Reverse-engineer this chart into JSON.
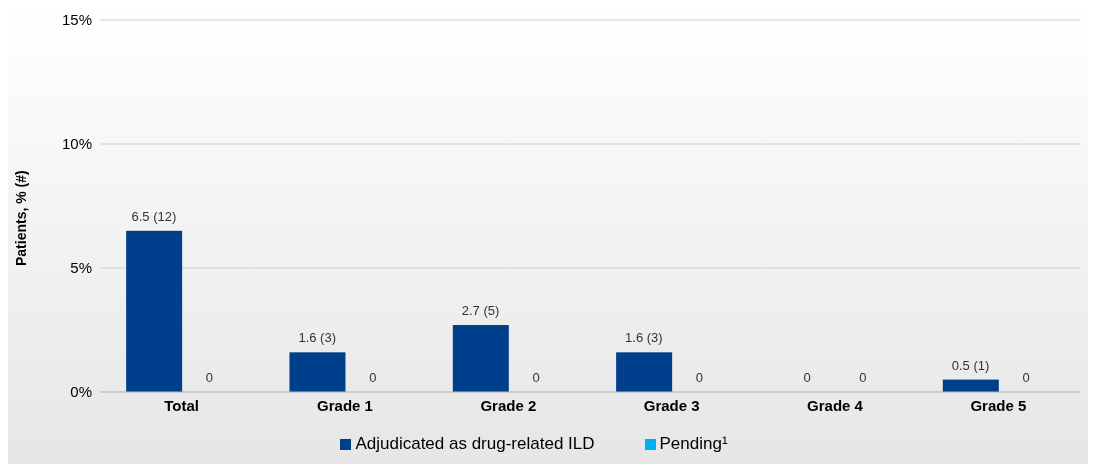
{
  "chart_data": {
    "type": "bar",
    "ylabel": "Patients, % (#)",
    "categories": [
      "Total",
      "Grade 1",
      "Grade 2",
      "Grade 3",
      "Grade 4",
      "Grade 5"
    ],
    "series": [
      {
        "name": "Adjudicated as drug-related ILD",
        "color": "#003f8c",
        "values": [
          6.5,
          1.6,
          2.7,
          1.6,
          0,
          0.5
        ],
        "value_labels": [
          "6.5 (12)",
          "1.6 (3)",
          "2.7 (5)",
          "1.6 (3)",
          "0",
          "0.5 (1)"
        ]
      },
      {
        "name": "Pending¹",
        "color": "#00b0f0",
        "values": [
          0,
          0,
          0,
          0,
          0,
          0
        ],
        "value_labels": [
          "0",
          "0",
          "0",
          "0",
          "0",
          "0"
        ]
      }
    ],
    "ylim": [
      0,
      15
    ],
    "yticks": [
      {
        "value": 0,
        "label": "0%"
      },
      {
        "value": 5,
        "label": "5%"
      },
      {
        "value": 10,
        "label": "10%"
      },
      {
        "value": 15,
        "label": "15%"
      }
    ],
    "grid": "y",
    "legend": "bottom"
  }
}
